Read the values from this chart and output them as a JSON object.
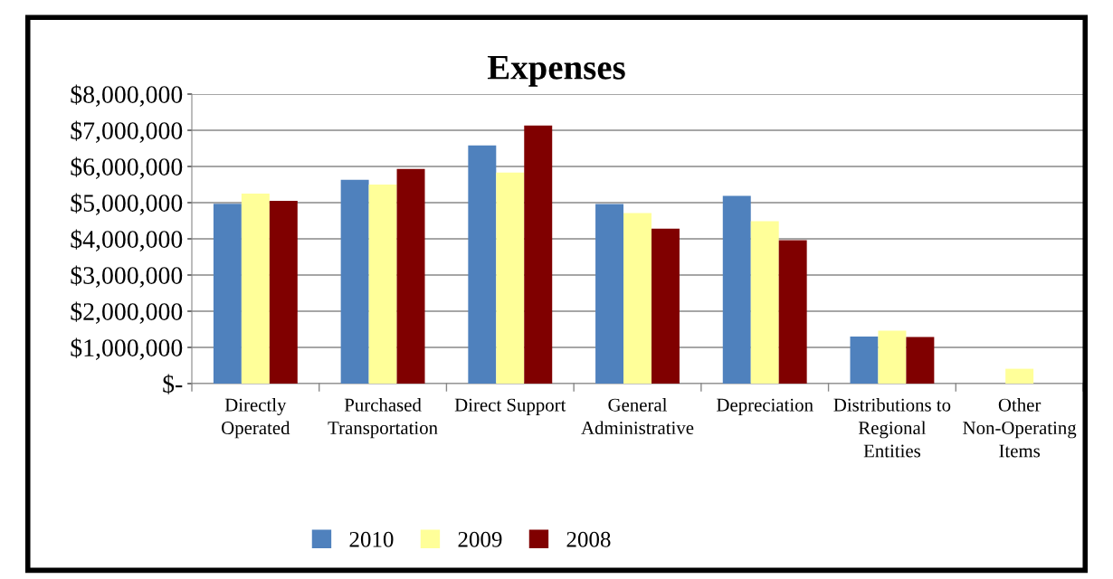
{
  "chart_data": {
    "type": "bar",
    "title": "Expenses",
    "categories": [
      "Directly Operated",
      "Purchased Transportation",
      "Direct Support",
      "General Administrative",
      "Depreciation",
      "Distributions to Regional Entities",
      "Other Non-Operating Items"
    ],
    "series": [
      {
        "name": "2010",
        "color": "#4f81bd",
        "values": [
          4970000,
          5630000,
          6580000,
          4960000,
          5190000,
          1300000,
          null
        ]
      },
      {
        "name": "2009",
        "color": "#ffff99",
        "values": [
          5250000,
          5500000,
          5830000,
          4710000,
          4490000,
          1460000,
          410000
        ]
      },
      {
        "name": "2008",
        "color": "#800000",
        "values": [
          5050000,
          5930000,
          7130000,
          4280000,
          3960000,
          1290000,
          null
        ]
      }
    ],
    "ylim": [
      0,
      8000000
    ],
    "yticks": [
      {
        "value": 0,
        "label": "$-"
      },
      {
        "value": 1000000,
        "label": "$1,000,000"
      },
      {
        "value": 2000000,
        "label": "$2,000,000"
      },
      {
        "value": 3000000,
        "label": "$3,000,000"
      },
      {
        "value": 4000000,
        "label": "$4,000,000"
      },
      {
        "value": 5000000,
        "label": "$5,000,000"
      },
      {
        "value": 6000000,
        "label": "$6,000,000"
      },
      {
        "value": 7000000,
        "label": "$7,000,000"
      },
      {
        "value": 8000000,
        "label": "$8,000,000"
      }
    ],
    "grid": "y",
    "legend": "bottom"
  }
}
